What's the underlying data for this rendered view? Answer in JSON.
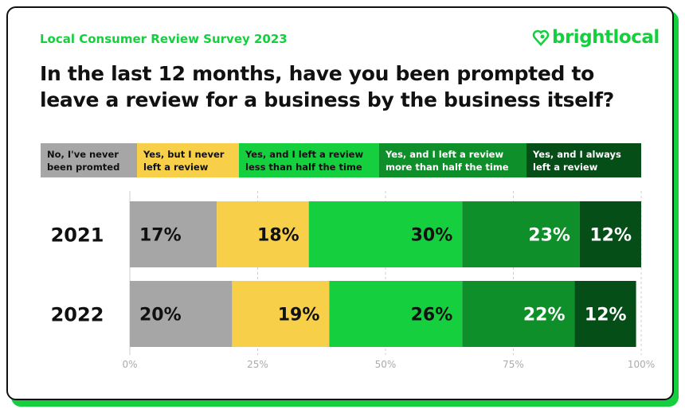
{
  "header": {
    "subtitle": "Local Consumer Review Survey 2023",
    "brand": "brightlocal",
    "title": "In the last 12 months, have you been prompted to leave a review for a business by the business itself?"
  },
  "chart_data": {
    "type": "bar",
    "orientation": "horizontal",
    "stacked": true,
    "title": "In the last 12 months, have you been prompted to leave a review for a business by the business itself?",
    "categories": [
      "2021",
      "2022"
    ],
    "series": [
      {
        "name": "No, I've never been promted",
        "color": "#a6a6a6",
        "text_color": "#111111",
        "values": [
          17,
          20
        ]
      },
      {
        "name": "Yes, but I never left a review",
        "color": "#f7cf48",
        "text_color": "#111111",
        "values": [
          18,
          19
        ]
      },
      {
        "name": "Yes, and I left a review less than half the time",
        "color": "#15cf3f",
        "text_color": "#111111",
        "values": [
          30,
          26
        ]
      },
      {
        "name": "Yes, and I left a review more than half the time",
        "color": "#0f8f2a",
        "text_color": "#ffffff",
        "values": [
          23,
          22
        ]
      },
      {
        "name": "Yes, and I always left a review",
        "color": "#064e17",
        "text_color": "#ffffff",
        "values": [
          12,
          12
        ]
      }
    ],
    "xlim": [
      0,
      100
    ],
    "ticks": [
      "0%",
      "25%",
      "50%",
      "75%",
      "100%"
    ],
    "legend": "top",
    "grid": "vertical dashed"
  }
}
